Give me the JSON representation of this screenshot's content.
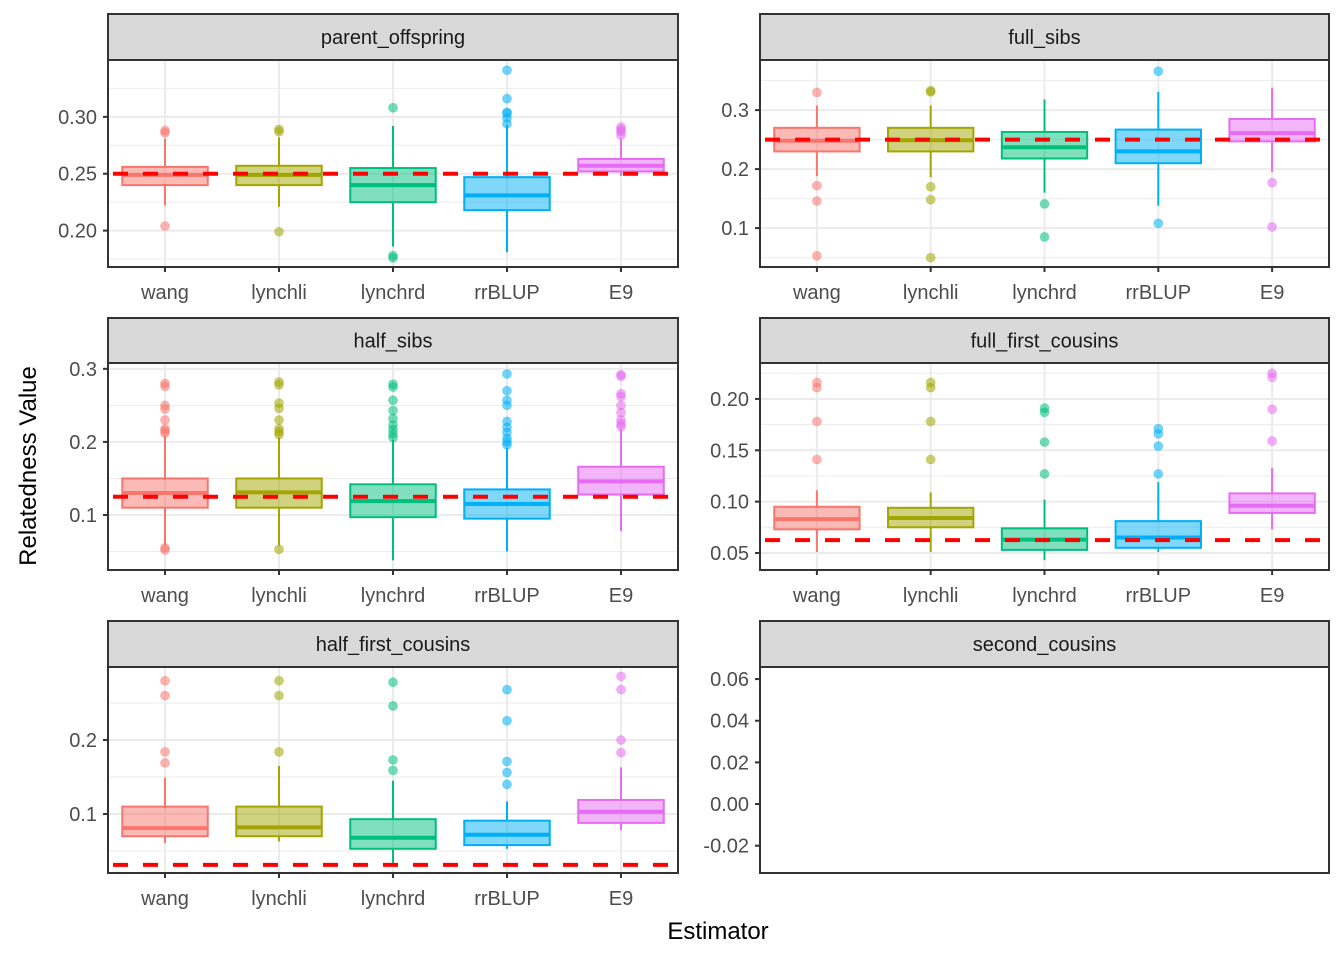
{
  "chart_data": {
    "type": "box",
    "xlabel": "Estimator",
    "ylabel": "Relatedness Value",
    "categories": [
      "wang",
      "lynchli",
      "lynchrd",
      "rrBLUP",
      "E9"
    ],
    "colors": {
      "wang": "#F8766D",
      "lynchli": "#A3A500",
      "lynchrd": "#00BF7D",
      "rrBLUP": "#00B0F6",
      "E9": "#E76BF3",
      "reference_line": "#FF0000",
      "strip_bg": "#D9D9D9",
      "grid": "#EBEBEB"
    },
    "grid": true,
    "legend": "none",
    "panels": [
      {
        "title": "parent_offspring",
        "ylim": [
          0.168,
          0.35
        ],
        "yticks": [
          0.2,
          0.25,
          0.3
        ],
        "ytick_labels": [
          "0.20",
          "0.25",
          "0.30"
        ],
        "reference": 0.25,
        "boxes": [
          {
            "q1": 0.24,
            "median": 0.249,
            "q3": 0.256,
            "whisker_low": 0.222,
            "whisker_high": 0.281,
            "outliers": [
              0.204,
              0.286,
              0.288
            ]
          },
          {
            "q1": 0.24,
            "median": 0.249,
            "q3": 0.257,
            "whisker_low": 0.221,
            "whisker_high": 0.282,
            "outliers": [
              0.199,
              0.287,
              0.289
            ]
          },
          {
            "q1": 0.225,
            "median": 0.24,
            "q3": 0.255,
            "whisker_low": 0.186,
            "whisker_high": 0.292,
            "outliers": [
              0.176,
              0.178,
              0.308
            ]
          },
          {
            "q1": 0.218,
            "median": 0.231,
            "q3": 0.247,
            "whisker_low": 0.181,
            "whisker_high": 0.293,
            "outliers": [
              0.294,
              0.299,
              0.303,
              0.304,
              0.316,
              0.341
            ]
          },
          {
            "q1": 0.252,
            "median": 0.257,
            "q3": 0.263,
            "whisker_low": 0.248,
            "whisker_high": 0.281,
            "outliers": [
              0.284,
              0.287,
              0.289,
              0.291
            ]
          }
        ]
      },
      {
        "title": "full_sibs",
        "ylim": [
          0.034,
          0.385
        ],
        "yticks": [
          0.1,
          0.2,
          0.3
        ],
        "ytick_labels": [
          "0.1",
          "0.2",
          "0.3"
        ],
        "reference": 0.25,
        "boxes": [
          {
            "q1": 0.23,
            "median": 0.248,
            "q3": 0.27,
            "whisker_low": 0.188,
            "whisker_high": 0.308,
            "outliers": [
              0.053,
              0.146,
              0.172,
              0.33
            ]
          },
          {
            "q1": 0.23,
            "median": 0.249,
            "q3": 0.27,
            "whisker_low": 0.186,
            "whisker_high": 0.308,
            "outliers": [
              0.05,
              0.148,
              0.17,
              0.331,
              0.333
            ]
          },
          {
            "q1": 0.218,
            "median": 0.237,
            "q3": 0.263,
            "whisker_low": 0.16,
            "whisker_high": 0.318,
            "outliers": [
              0.085,
              0.141
            ]
          },
          {
            "q1": 0.21,
            "median": 0.23,
            "q3": 0.267,
            "whisker_low": 0.138,
            "whisker_high": 0.331,
            "outliers": [
              0.108,
              0.366
            ]
          },
          {
            "q1": 0.247,
            "median": 0.261,
            "q3": 0.285,
            "whisker_low": 0.195,
            "whisker_high": 0.338,
            "outliers": [
              0.102,
              0.177
            ]
          }
        ]
      },
      {
        "title": "half_sibs",
        "ylim": [
          0.0247,
          0.308
        ],
        "yticks": [
          0.1,
          0.2,
          0.3
        ],
        "ytick_labels": [
          "0.1",
          "0.2",
          "0.3"
        ],
        "reference": 0.125,
        "boxes": [
          {
            "q1": 0.11,
            "median": 0.13,
            "q3": 0.15,
            "whisker_low": 0.058,
            "whisker_high": 0.208,
            "outliers": [
              0.052,
              0.055,
              0.212,
              0.215,
              0.218,
              0.23,
              0.245,
              0.25,
              0.276,
              0.28
            ]
          },
          {
            "q1": 0.11,
            "median": 0.131,
            "q3": 0.15,
            "whisker_low": 0.058,
            "whisker_high": 0.206,
            "outliers": [
              0.053,
              0.21,
              0.214,
              0.218,
              0.23,
              0.246,
              0.253,
              0.278,
              0.282
            ]
          },
          {
            "q1": 0.097,
            "median": 0.119,
            "q3": 0.142,
            "whisker_low": 0.038,
            "whisker_high": 0.203,
            "outliers": [
              0.206,
              0.211,
              0.217,
              0.223,
              0.232,
              0.243,
              0.257,
              0.275,
              0.279
            ]
          },
          {
            "q1": 0.095,
            "median": 0.115,
            "q3": 0.135,
            "whisker_low": 0.05,
            "whisker_high": 0.192,
            "outliers": [
              0.196,
              0.2,
              0.205,
              0.213,
              0.22,
              0.228,
              0.25,
              0.257,
              0.27,
              0.293
            ]
          },
          {
            "q1": 0.128,
            "median": 0.146,
            "q3": 0.166,
            "whisker_low": 0.078,
            "whisker_high": 0.218,
            "outliers": [
              0.221,
              0.225,
              0.23,
              0.24,
              0.25,
              0.262,
              0.266,
              0.29,
              0.292
            ]
          }
        ]
      },
      {
        "title": "full_first_cousins",
        "ylim": [
          0.0334,
          0.235
        ],
        "yticks": [
          0.05,
          0.1,
          0.15,
          0.2
        ],
        "ytick_labels": [
          "0.05",
          "0.10",
          "0.15",
          "0.20"
        ],
        "reference": 0.0625,
        "boxes": [
          {
            "q1": 0.073,
            "median": 0.083,
            "q3": 0.095,
            "whisker_low": 0.051,
            "whisker_high": 0.111,
            "outliers": [
              0.141,
              0.178,
              0.211,
              0.216
            ]
          },
          {
            "q1": 0.075,
            "median": 0.084,
            "q3": 0.094,
            "whisker_low": 0.051,
            "whisker_high": 0.109,
            "outliers": [
              0.141,
              0.178,
              0.211,
              0.216
            ]
          },
          {
            "q1": 0.053,
            "median": 0.063,
            "q3": 0.074,
            "whisker_low": 0.043,
            "whisker_high": 0.102,
            "outliers": [
              0.127,
              0.158,
              0.187,
              0.191
            ]
          },
          {
            "q1": 0.055,
            "median": 0.065,
            "q3": 0.081,
            "whisker_low": 0.051,
            "whisker_high": 0.119,
            "outliers": [
              0.127,
              0.154,
              0.166,
              0.171
            ]
          },
          {
            "q1": 0.089,
            "median": 0.096,
            "q3": 0.108,
            "whisker_low": 0.073,
            "whisker_high": 0.133,
            "outliers": [
              0.159,
              0.19,
              0.221,
              0.225
            ]
          }
        ]
      },
      {
        "title": "half_first_cousins",
        "ylim": [
          0.0203,
          0.2986
        ],
        "yticks": [
          0.1,
          0.2
        ],
        "ytick_labels": [
          "0.1",
          "0.2"
        ],
        "reference": 0.03125,
        "boxes": [
          {
            "q1": 0.07,
            "median": 0.081,
            "q3": 0.11,
            "whisker_low": 0.061,
            "whisker_high": 0.149,
            "outliers": [
              0.169,
              0.184,
              0.26,
              0.28
            ]
          },
          {
            "q1": 0.07,
            "median": 0.082,
            "q3": 0.11,
            "whisker_low": 0.063,
            "whisker_high": 0.165,
            "outliers": [
              0.184,
              0.26,
              0.28
            ]
          },
          {
            "q1": 0.053,
            "median": 0.068,
            "q3": 0.093,
            "whisker_low": 0.034,
            "whisker_high": 0.145,
            "outliers": [
              0.159,
              0.173,
              0.246,
              0.278
            ]
          },
          {
            "q1": 0.058,
            "median": 0.072,
            "q3": 0.091,
            "whisker_low": 0.053,
            "whisker_high": 0.117,
            "outliers": [
              0.14,
              0.156,
              0.171,
              0.226,
              0.268
            ]
          },
          {
            "q1": 0.088,
            "median": 0.103,
            "q3": 0.119,
            "whisker_low": 0.078,
            "whisker_high": 0.163,
            "outliers": [
              0.183,
              0.2,
              0.268,
              0.286
            ]
          }
        ]
      },
      {
        "title": "second_cousins",
        "ylim": [
          -0.0331,
          0.0658
        ],
        "yticks": [
          -0.02,
          0.0,
          0.02,
          0.04,
          0.06
        ],
        "ytick_labels": [
          "-0.02",
          "0.00",
          "0.02",
          "0.04",
          "0.06"
        ],
        "reference": null,
        "empty": true,
        "boxes": []
      }
    ]
  }
}
